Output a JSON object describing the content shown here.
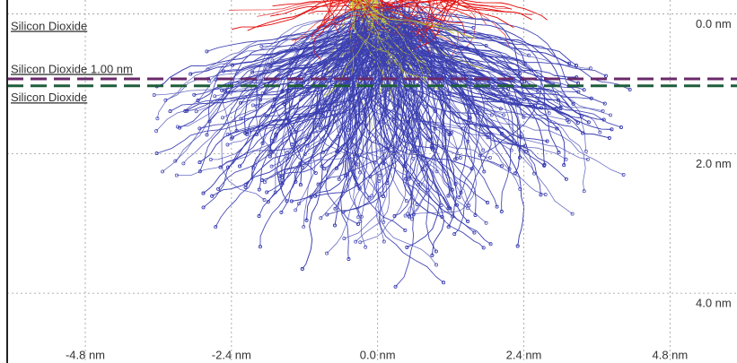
{
  "chart_data": {
    "type": "trajectory",
    "xlim": [
      -6.2,
      5.9
    ],
    "ylim": [
      -0.2,
      5.0
    ],
    "xticks": [
      {
        "value": -4.8,
        "label": "-4.8 nm"
      },
      {
        "value": -2.4,
        "label": "-2.4 nm"
      },
      {
        "value": 0.0,
        "label": "0.0 nm"
      },
      {
        "value": 2.4,
        "label": "2.4 nm"
      },
      {
        "value": 4.8,
        "label": "4.8 nm"
      }
    ],
    "yticks": [
      {
        "value": 0.0,
        "label": "0.0 nm"
      },
      {
        "value": 2.0,
        "label": "2.0 nm"
      },
      {
        "value": 4.0,
        "label": "4.0 nm"
      }
    ],
    "grid": true,
    "layers": [
      {
        "name": "Silicon Dioxide",
        "color": "#b01c1c"
      },
      {
        "name": "Silicon Dioxide 1.00 nm",
        "color": "#6a2a6a",
        "boundary": 0.93
      },
      {
        "name": "Silicon Dioxide",
        "color": "#1f5e3a",
        "boundary": 1.03
      }
    ]
  }
}
